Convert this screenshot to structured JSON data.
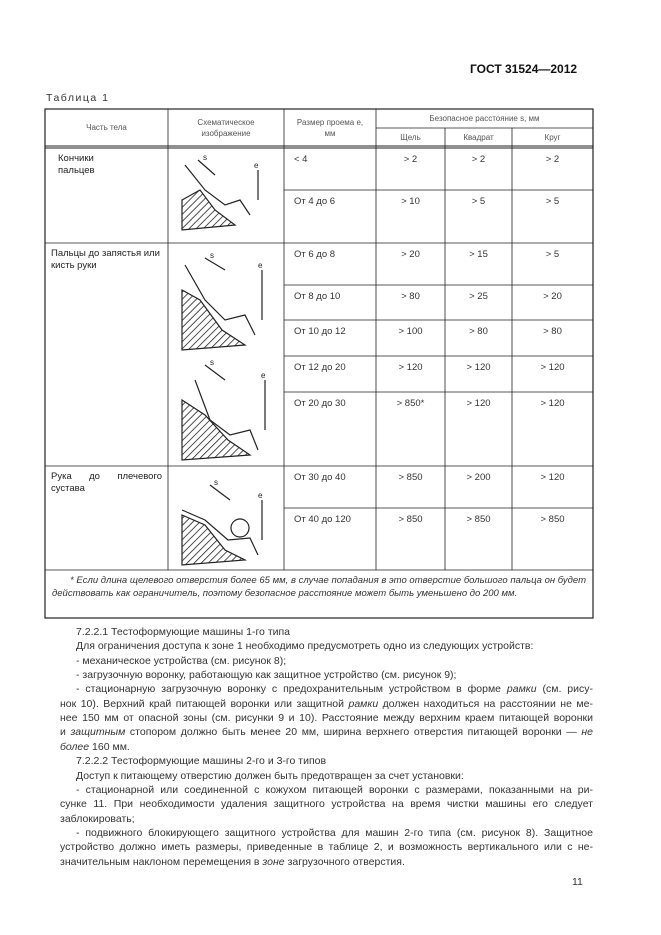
{
  "header": {
    "standard": "ГОСТ 31524—2012"
  },
  "table": {
    "caption": "Таблица 1",
    "columns": {
      "part": "Часть тела",
      "image": "Схематическое изображение",
      "size": "Размер проема e, мм",
      "distance": "Безопасное расстояние s, мм",
      "slot": "Щель",
      "square": "Квадрат",
      "circle": "Круг"
    },
    "groups": [
      {
        "part": "Кончики пальцев",
        "rows": [
          {
            "size": "< 4",
            "slot": "> 2",
            "square": "> 2",
            "circle": "> 2"
          },
          {
            "size": "От 4 до 6",
            "slot": "> 10",
            "square": "> 5",
            "circle": "> 5"
          }
        ]
      },
      {
        "part": "Пальцы до запястья или кисть руки",
        "rows": [
          {
            "size": "От 6 до 8",
            "slot": "> 20",
            "square": "> 15",
            "circle": "> 5"
          },
          {
            "size": "От 8 до 10",
            "slot": "> 80",
            "square": "> 25",
            "circle": "> 20"
          },
          {
            "size": "От 10 до 12",
            "slot": "> 100",
            "square": "> 80",
            "circle": "> 80"
          },
          {
            "size": "От 12 до 20",
            "slot": "> 120",
            "square": "> 120",
            "circle": "> 120"
          },
          {
            "size": "От 20 до 30",
            "slot": "> 850*",
            "square": "> 120",
            "circle": "> 120"
          }
        ]
      },
      {
        "part": "Рука до плечевого сустава",
        "rows": [
          {
            "size": "От 30 до 40",
            "slot": "> 850",
            "square": "> 200",
            "circle": "> 120"
          },
          {
            "size": "От 40 до 120",
            "slot": "> 850",
            "square": "> 850",
            "circle": "> 850"
          }
        ]
      }
    ],
    "footnote": "* Если длина щелевого отверстия более 65 мм, в случае попадания в это отверстие большого пальца он будет действовать как ограничитель, поэтому безопасное расстояние может быть уменьшено до 200 мм."
  },
  "body": {
    "lines": [
      {
        "ind": true,
        "j": false,
        "segs": [
          {
            "t": "7.2.2.1  Тестоформующие машины 1-го типа"
          }
        ]
      },
      {
        "ind": true,
        "j": false,
        "segs": [
          {
            "t": "Для ограничения доступа к зоне 1 необходимо предусмотреть одно из следующих устройств:"
          }
        ]
      },
      {
        "ind": true,
        "j": false,
        "segs": [
          {
            "t": "- механическое устройства (см. рисунок 8);"
          }
        ]
      },
      {
        "ind": true,
        "j": false,
        "segs": [
          {
            "t": "- загрузочную воронку, работающую как защитное устройство (см. рисунок 9);"
          }
        ]
      },
      {
        "ind": true,
        "j": true,
        "segs": [
          {
            "t": "- стационарную загрузочную воронку с предохранительным устройством в форме "
          },
          {
            "t": "рамки",
            "i": true
          },
          {
            "t": " (см. рису-"
          }
        ]
      },
      {
        "ind": false,
        "j": true,
        "segs": [
          {
            "t": "нок 10). Верхний край питающей воронки или защитной "
          },
          {
            "t": "рамки",
            "i": true
          },
          {
            "t": " должен находиться на расстоянии не ме-"
          }
        ]
      },
      {
        "ind": false,
        "j": true,
        "segs": [
          {
            "t": "нее 150 мм от опасной зоны (см. рисунки 9 и 10). Расстояние между верхним краем питающей воронки"
          }
        ]
      },
      {
        "ind": false,
        "j": true,
        "segs": [
          {
            "t": "и "
          },
          {
            "t": "защитным",
            "i": true
          },
          {
            "t": " стопором должно быть менее 20 мм, ширина верхнего отверстия питающей воронки — "
          },
          {
            "t": "не",
            "i": true
          }
        ]
      },
      {
        "ind": false,
        "j": false,
        "segs": [
          {
            "t": "более",
            "i": true
          },
          {
            "t": " 160 мм."
          }
        ]
      },
      {
        "ind": true,
        "j": false,
        "segs": [
          {
            "t": "7.2.2.2  Тестоформующие машины 2-го и 3-го типов"
          }
        ]
      },
      {
        "ind": true,
        "j": false,
        "segs": [
          {
            "t": "Доступ к питающему отверстию должен быть предотвращен за счет установки:"
          }
        ]
      },
      {
        "ind": true,
        "j": true,
        "segs": [
          {
            "t": "- стационарной или соединенной с кожухом питающей воронки с размерами, показанными на ри-"
          }
        ]
      },
      {
        "ind": false,
        "j": true,
        "segs": [
          {
            "t": "сунке 11. При необходимости удаления защитного устройства на время чистки машины его следует"
          }
        ]
      },
      {
        "ind": false,
        "j": false,
        "segs": [
          {
            "t": "заблокировать;"
          }
        ]
      },
      {
        "ind": true,
        "j": true,
        "segs": [
          {
            "t": "- подвижного блокирующего защитного устройства для машин 2-го типа (см. рисунок 8). Защитное"
          }
        ]
      },
      {
        "ind": false,
        "j": true,
        "segs": [
          {
            "t": "устройство должно иметь размеры, приведенные в таблице 2, и возможность вертикального или с не-"
          }
        ]
      },
      {
        "ind": false,
        "j": false,
        "segs": [
          {
            "t": "значительным наклоном перемещения в "
          },
          {
            "t": "зоне",
            "i": true
          },
          {
            "t": " загрузочного отверстия."
          }
        ]
      }
    ]
  },
  "footer": {
    "page_number": "11"
  }
}
